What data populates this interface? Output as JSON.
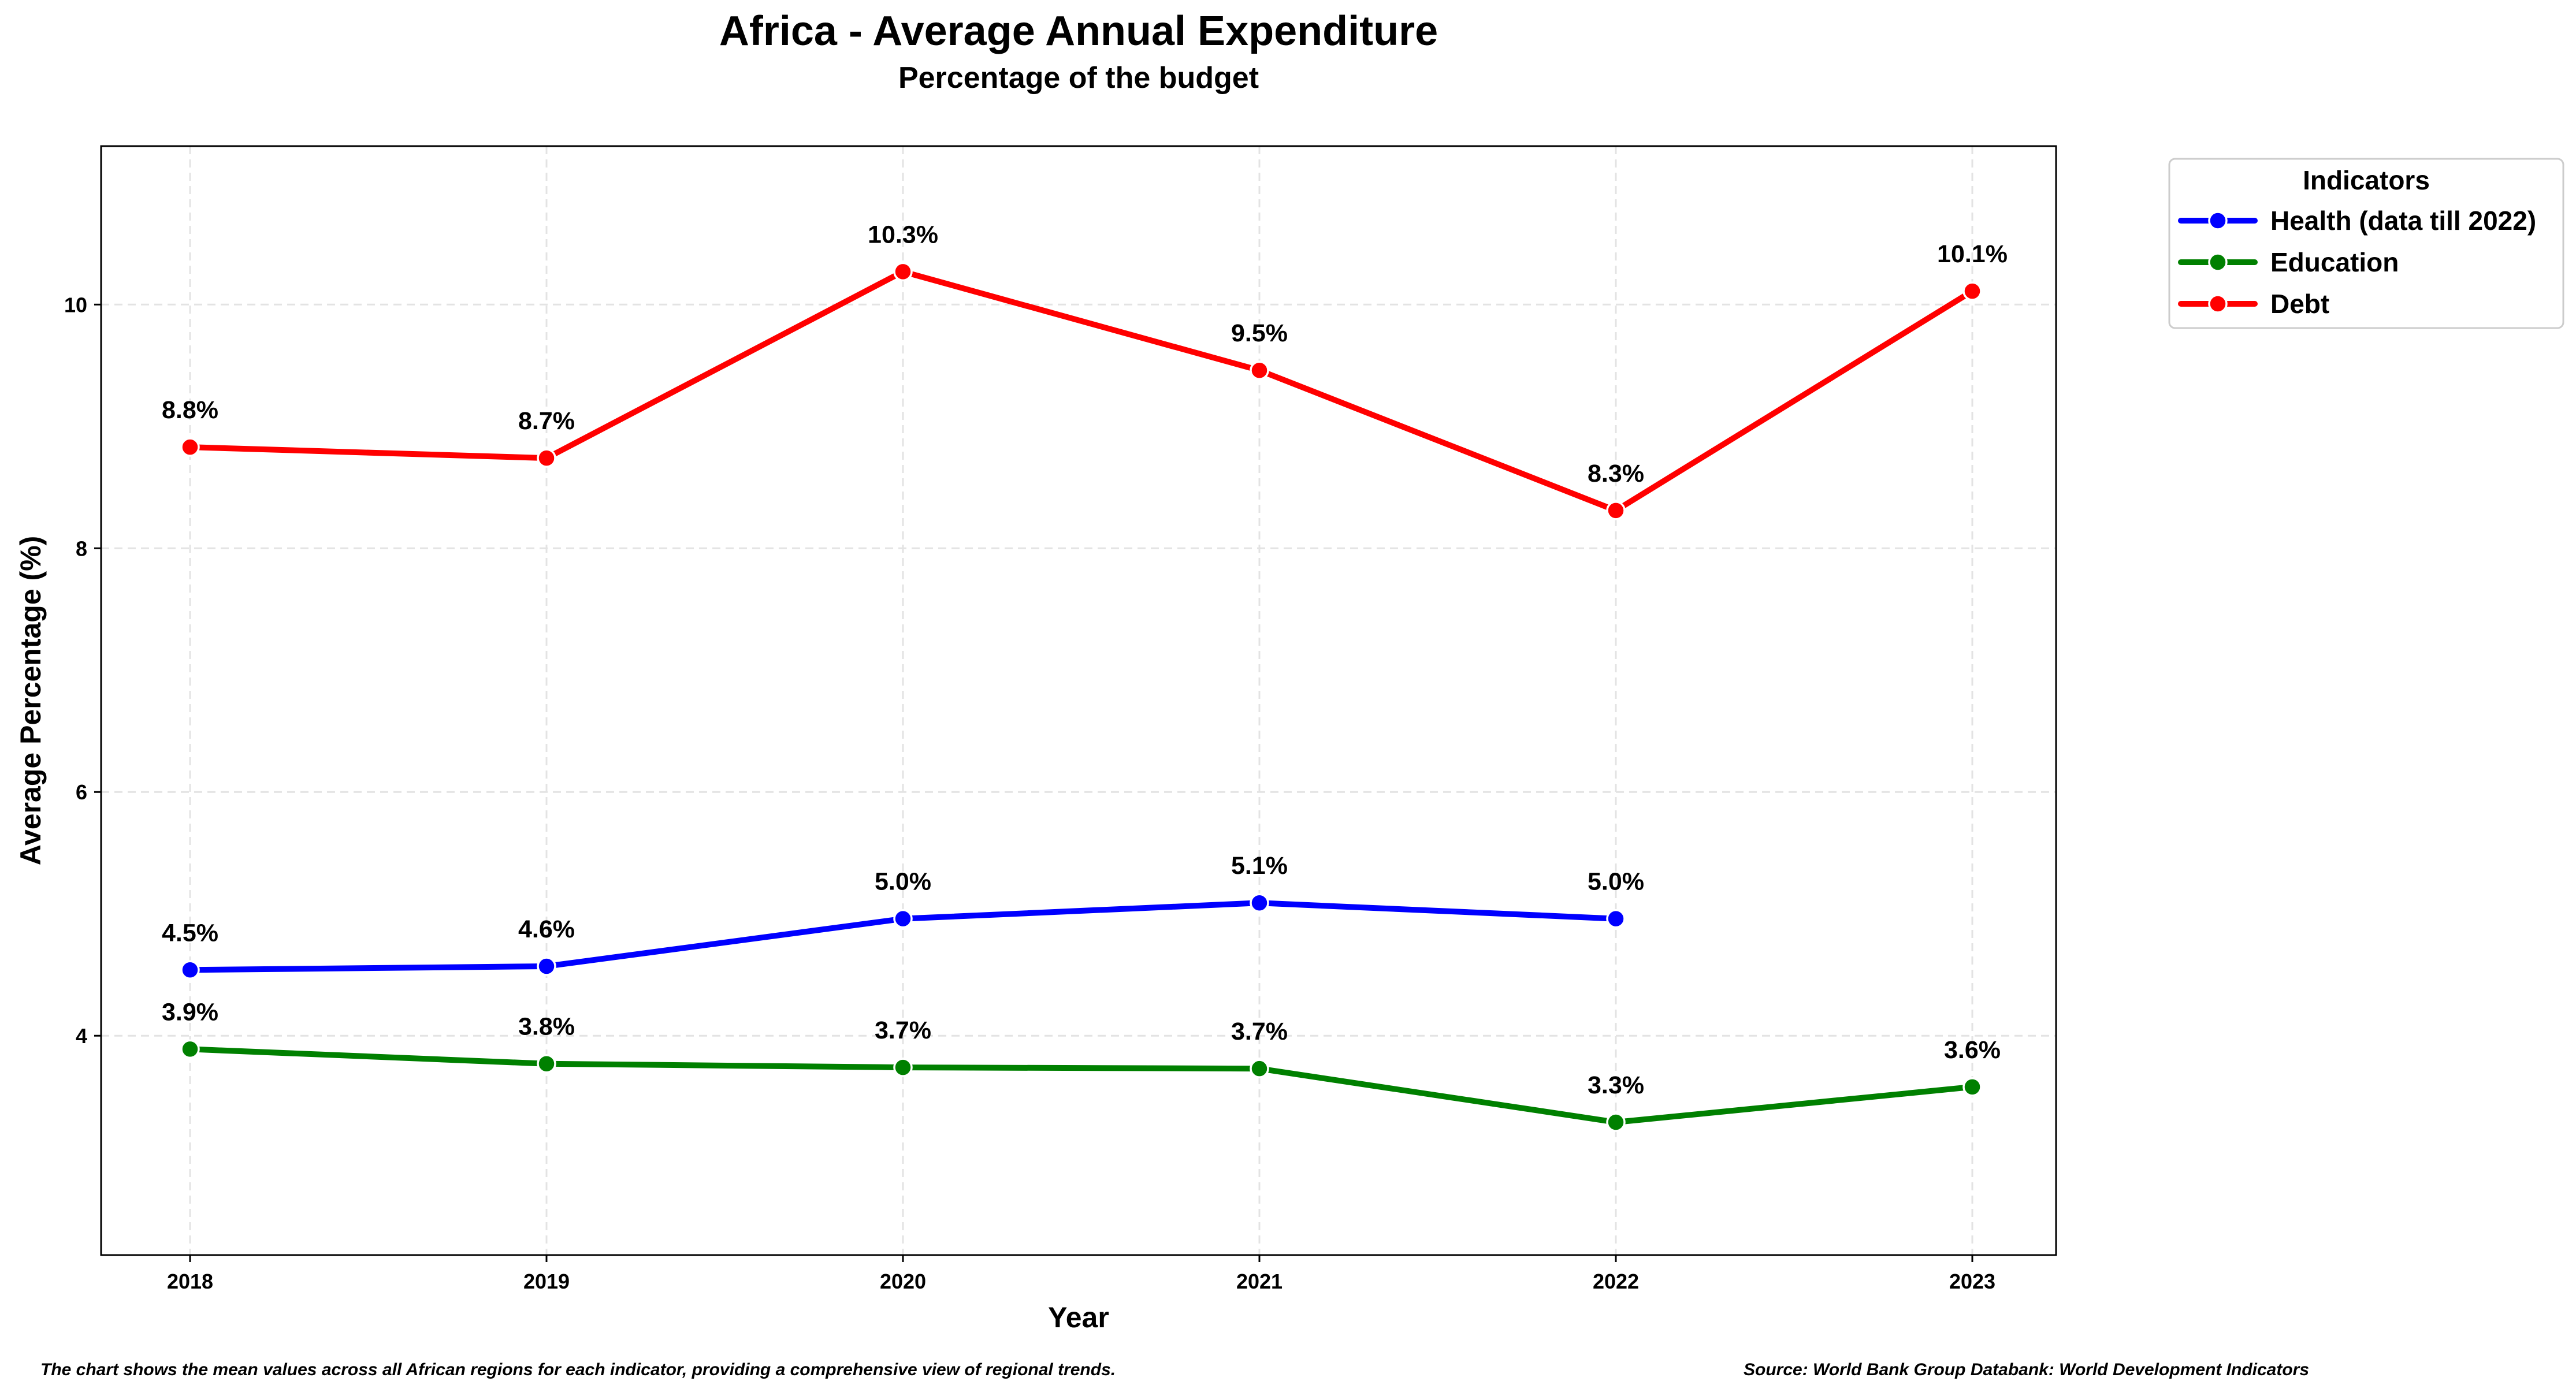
{
  "chart_data": {
    "type": "line",
    "title": "Africa - Average Annual Expenditure",
    "subtitle": "Percentage of the budget",
    "xlabel": "Year",
    "ylabel": "Average Percentage (%)",
    "x": [
      "2018",
      "2019",
      "2020",
      "2021",
      "2022",
      "2023"
    ],
    "ylim": [
      2.2,
      11.3
    ],
    "yticks": [
      4,
      6,
      8,
      10
    ],
    "grid": true,
    "legend": {
      "title": "Indicators",
      "placement": "outside-top-right"
    },
    "series": [
      {
        "name": "Health (data till 2022)",
        "color": "#0000ff",
        "values": [
          4.54,
          4.57,
          4.96,
          5.09,
          4.96,
          null
        ],
        "labels": [
          "4.5%",
          "4.6%",
          "5.0%",
          "5.1%",
          "5.0%",
          null
        ]
      },
      {
        "name": "Education",
        "color": "#008000",
        "values": [
          3.89,
          3.77,
          3.74,
          3.73,
          3.29,
          3.58
        ],
        "labels": [
          "3.9%",
          "3.8%",
          "3.7%",
          "3.7%",
          "3.3%",
          "3.6%"
        ]
      },
      {
        "name": "Debt",
        "color": "#ff0000",
        "values": [
          8.83,
          8.74,
          10.27,
          9.46,
          8.31,
          10.11
        ],
        "labels": [
          "8.8%",
          "8.7%",
          "10.3%",
          "9.5%",
          "8.3%",
          "10.1%"
        ]
      }
    ]
  },
  "footer": {
    "note": "The chart shows the mean values across all African regions for each indicator, providing a comprehensive view of regional trends.",
    "source": "Source: World Bank Group Databank: World Development Indicators"
  }
}
